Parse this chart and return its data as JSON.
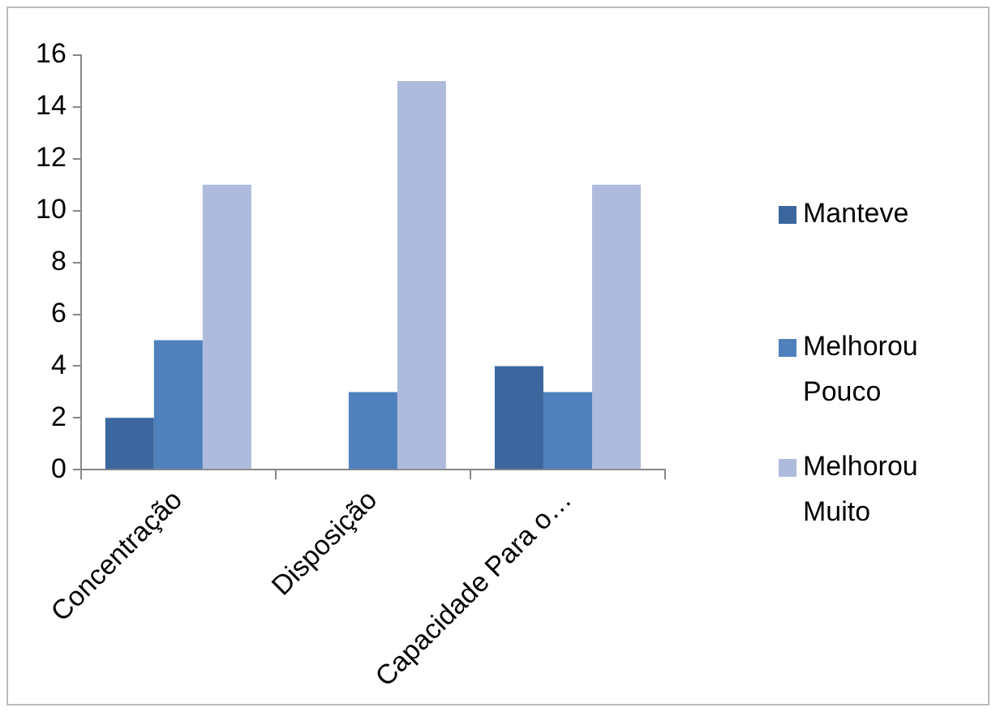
{
  "chart_data": {
    "type": "bar",
    "categories": [
      "Concentração",
      "Disposição",
      "Capacidade Para o…"
    ],
    "series": [
      {
        "name": "Manteve",
        "color": "#3b679e",
        "values": [
          2,
          0,
          4
        ]
      },
      {
        "name": "Melhorou Pouco",
        "color": "#4f81bd",
        "values": [
          5,
          3,
          3
        ]
      },
      {
        "name": "Melhorou Muito",
        "color": "#aebbdc",
        "values": [
          11,
          15,
          11
        ]
      }
    ],
    "ylim": [
      0,
      16
    ],
    "yticks": [
      0,
      2,
      4,
      6,
      8,
      10,
      12,
      14,
      16
    ],
    "grid": false,
    "legend": "right"
  }
}
